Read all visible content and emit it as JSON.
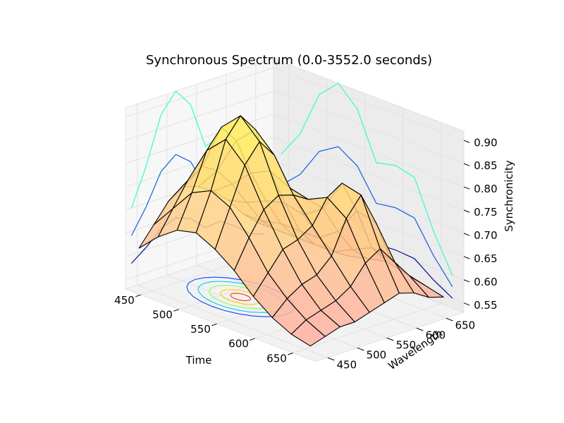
{
  "chart_data": {
    "type": "surface3d",
    "title": "Synchronous Spectrum (0.0-3552.0 seconds)",
    "xlabel": "Time",
    "ylabel": "Wavelength",
    "zlabel": "Synchronicity",
    "x_ticks": [
      "450",
      "500",
      "550",
      "600",
      "650"
    ],
    "y_ticks": [
      "450",
      "500",
      "550",
      "600",
      "650"
    ],
    "z_ticks": [
      "0.55",
      "0.60",
      "0.65",
      "0.70",
      "0.75",
      "0.80",
      "0.85",
      "0.90"
    ],
    "xlim": [
      430,
      680
    ],
    "ylim": [
      430,
      680
    ],
    "zlim": [
      0.53,
      0.92
    ],
    "grid": true,
    "x": [
      440,
      465,
      490,
      515,
      540,
      565,
      590,
      615,
      640,
      665
    ],
    "y": [
      440,
      465,
      490,
      515,
      540,
      565,
      590,
      615,
      640,
      665
    ],
    "z": [
      [
        0.62,
        0.66,
        0.7,
        0.72,
        0.71,
        0.69,
        0.66,
        0.62,
        0.59,
        0.57
      ],
      [
        0.66,
        0.71,
        0.76,
        0.78,
        0.76,
        0.72,
        0.67,
        0.62,
        0.59,
        0.57
      ],
      [
        0.69,
        0.76,
        0.84,
        0.88,
        0.84,
        0.76,
        0.69,
        0.63,
        0.59,
        0.57
      ],
      [
        0.7,
        0.78,
        0.88,
        0.92,
        0.88,
        0.78,
        0.7,
        0.63,
        0.59,
        0.57
      ],
      [
        0.68,
        0.76,
        0.84,
        0.88,
        0.84,
        0.76,
        0.69,
        0.63,
        0.59,
        0.57
      ],
      [
        0.65,
        0.71,
        0.76,
        0.78,
        0.77,
        0.75,
        0.72,
        0.66,
        0.61,
        0.58
      ],
      [
        0.61,
        0.65,
        0.69,
        0.7,
        0.72,
        0.77,
        0.79,
        0.72,
        0.63,
        0.59
      ],
      [
        0.58,
        0.61,
        0.63,
        0.64,
        0.67,
        0.74,
        0.78,
        0.71,
        0.62,
        0.58
      ],
      [
        0.56,
        0.58,
        0.59,
        0.6,
        0.62,
        0.66,
        0.68,
        0.64,
        0.6,
        0.57
      ],
      [
        0.55,
        0.56,
        0.57,
        0.57,
        0.58,
        0.59,
        0.6,
        0.59,
        0.57,
        0.56
      ]
    ]
  }
}
